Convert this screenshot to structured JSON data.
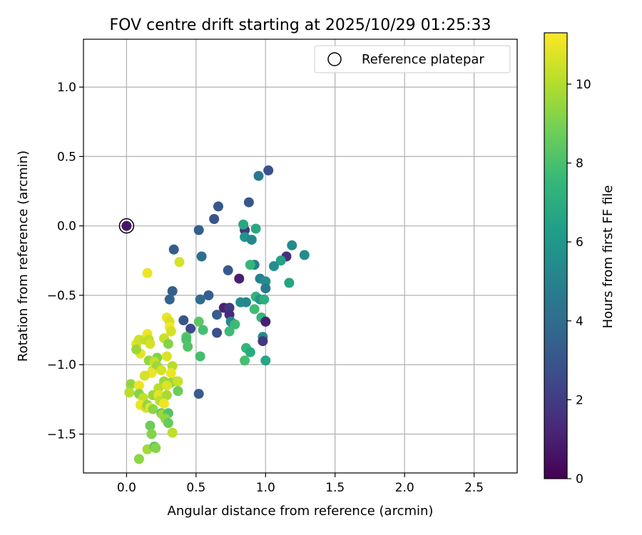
{
  "chart_data": {
    "type": "scatter",
    "title": "FOV centre drift starting at 2025/10/29 01:25:33",
    "xlabel": "Angular distance from reference (arcmin)",
    "ylabel": "Rotation from reference (arcmin)",
    "xlim": [
      -0.31,
      2.81
    ],
    "ylim": [
      -1.78,
      1.345
    ],
    "xticks": [
      0.0,
      0.5,
      1.0,
      1.5,
      2.0,
      2.5
    ],
    "xtick_labels": [
      "0.0",
      "0.5",
      "1.0",
      "1.5",
      "2.0",
      "2.5"
    ],
    "yticks": [
      -1.5,
      -1.0,
      -0.5,
      0.0,
      0.5,
      1.0
    ],
    "ytick_labels": [
      "−1.5",
      "−1.0",
      "−0.5",
      "0.0",
      "0.5",
      "1.0"
    ],
    "grid": true,
    "legend": {
      "position": "top-right",
      "label": "Reference platepar"
    },
    "reference_point": {
      "x": 0.0,
      "y": 0.0,
      "hours": 0.7
    },
    "colorbar": {
      "label": "Hours from first FF file",
      "colormap": "viridis",
      "range": [
        0,
        11.3
      ],
      "ticks": [
        0,
        2,
        4,
        6,
        8,
        10
      ],
      "tick_labels": [
        "0",
        "2",
        "4",
        "6",
        "8",
        "10"
      ]
    },
    "viridis_stops": [
      "#440154",
      "#482878",
      "#3e4a89",
      "#31688e",
      "#26828e",
      "#1f9e89",
      "#35b779",
      "#6ece58",
      "#b5de2b",
      "#fde725"
    ],
    "points": [
      [
        0.0,
        0.0,
        0.7
      ],
      [
        1.02,
        0.4,
        2.8
      ],
      [
        0.95,
        0.36,
        4.6
      ],
      [
        0.88,
        0.17,
        3.0
      ],
      [
        0.66,
        0.14,
        3.1
      ],
      [
        0.63,
        0.05,
        2.9
      ],
      [
        0.52,
        -0.03,
        3.4
      ],
      [
        0.85,
        -0.03,
        1.8
      ],
      [
        0.84,
        0.01,
        6.8
      ],
      [
        0.93,
        -0.02,
        6.8
      ],
      [
        0.85,
        -0.08,
        5.8
      ],
      [
        0.9,
        -0.1,
        5.2
      ],
      [
        0.34,
        -0.17,
        3.3
      ],
      [
        0.54,
        -0.22,
        4.1
      ],
      [
        1.19,
        -0.14,
        5.5
      ],
      [
        1.28,
        -0.21,
        5.5
      ],
      [
        1.15,
        -0.22,
        1.5
      ],
      [
        1.11,
        -0.25,
        6.5
      ],
      [
        1.06,
        -0.29,
        5.6
      ],
      [
        0.92,
        -0.28,
        4.6
      ],
      [
        0.89,
        -0.28,
        7.5
      ],
      [
        0.73,
        -0.32,
        3.2
      ],
      [
        0.81,
        -0.38,
        1.0
      ],
      [
        0.96,
        -0.38,
        5.0
      ],
      [
        1.0,
        -0.4,
        5.6
      ],
      [
        1.0,
        -0.45,
        4.6
      ],
      [
        1.17,
        -0.41,
        6.6
      ],
      [
        0.33,
        -0.47,
        3.4
      ],
      [
        0.59,
        -0.5,
        3.4
      ],
      [
        0.31,
        -0.53,
        3.6
      ],
      [
        0.53,
        -0.53,
        4.0
      ],
      [
        0.93,
        -0.51,
        7.3
      ],
      [
        0.96,
        -0.53,
        6.0
      ],
      [
        0.99,
        -0.53,
        7.1
      ],
      [
        0.82,
        -0.55,
        5.5
      ],
      [
        0.86,
        -0.55,
        5.3
      ],
      [
        0.7,
        -0.59,
        1.1
      ],
      [
        0.74,
        -0.59,
        1.9
      ],
      [
        0.74,
        -0.64,
        1.4
      ],
      [
        0.65,
        -0.64,
        3.3
      ],
      [
        0.92,
        -0.6,
        7.8
      ],
      [
        0.97,
        -0.66,
        7.4
      ],
      [
        1.0,
        -0.69,
        1.0
      ],
      [
        0.41,
        -0.68,
        3.0
      ],
      [
        0.52,
        -0.69,
        8.4
      ],
      [
        0.75,
        -0.69,
        5.3
      ],
      [
        0.78,
        -0.71,
        7.7
      ],
      [
        0.46,
        -0.74,
        2.5
      ],
      [
        0.55,
        -0.75,
        7.9
      ],
      [
        0.74,
        -0.76,
        7.7
      ],
      [
        0.65,
        -0.77,
        2.8
      ],
      [
        0.98,
        -0.8,
        5.4
      ],
      [
        0.98,
        -0.83,
        1.8
      ],
      [
        0.43,
        -0.8,
        8.3
      ],
      [
        0.43,
        -0.82,
        8.0
      ],
      [
        0.44,
        -0.87,
        8.2
      ],
      [
        0.86,
        -0.88,
        7.5
      ],
      [
        0.89,
        -0.91,
        6.9
      ],
      [
        0.53,
        -0.94,
        7.9
      ],
      [
        0.85,
        -0.97,
        7.9
      ],
      [
        1.0,
        -0.97,
        6.7
      ],
      [
        0.52,
        -1.21,
        3.3
      ],
      [
        0.38,
        -0.26,
        10.6
      ],
      [
        0.15,
        -0.34,
        11.0
      ],
      [
        0.29,
        -0.66,
        11.0
      ],
      [
        0.31,
        -0.69,
        10.6
      ],
      [
        0.31,
        -0.73,
        11.2
      ],
      [
        0.32,
        -0.76,
        10.6
      ],
      [
        0.27,
        -0.81,
        10.4
      ],
      [
        0.3,
        -0.85,
        9.2
      ],
      [
        0.07,
        -0.85,
        10.9
      ],
      [
        0.09,
        -0.82,
        10.5
      ],
      [
        0.13,
        -0.82,
        10.3
      ],
      [
        0.15,
        -0.78,
        11.0
      ],
      [
        0.16,
        -0.82,
        10.2
      ],
      [
        0.17,
        -0.85,
        10.6
      ],
      [
        0.1,
        -0.92,
        10.9
      ],
      [
        0.07,
        -0.89,
        9.6
      ],
      [
        0.16,
        -0.97,
        9.5
      ],
      [
        0.22,
        -0.95,
        9.2
      ],
      [
        0.2,
        -0.98,
        10.3
      ],
      [
        0.19,
        -1.04,
        10.4
      ],
      [
        0.22,
        -1.01,
        9.6
      ],
      [
        0.25,
        -1.04,
        10.6
      ],
      [
        0.29,
        -0.94,
        10.7
      ],
      [
        0.33,
        -1.01,
        10.1
      ],
      [
        0.32,
        -1.06,
        11.0
      ],
      [
        0.18,
        -1.06,
        11.0
      ],
      [
        0.13,
        -1.08,
        10.6
      ],
      [
        0.03,
        -1.14,
        9.4
      ],
      [
        0.09,
        -1.15,
        11.0
      ],
      [
        0.27,
        -1.12,
        9.6
      ],
      [
        0.32,
        -1.13,
        9.4
      ],
      [
        0.36,
        -1.12,
        9.9
      ],
      [
        0.37,
        -1.12,
        10.4
      ],
      [
        0.37,
        -1.19,
        8.7
      ],
      [
        0.23,
        -1.17,
        10.1
      ],
      [
        0.29,
        -1.15,
        10.7
      ],
      [
        0.02,
        -1.2,
        10.1
      ],
      [
        0.09,
        -1.21,
        9.2
      ],
      [
        0.12,
        -1.24,
        10.3
      ],
      [
        0.19,
        -1.22,
        9.6
      ],
      [
        0.23,
        -1.22,
        10.9
      ],
      [
        0.24,
        -1.26,
        10.2
      ],
      [
        0.29,
        -1.22,
        9.8
      ],
      [
        0.27,
        -1.28,
        11.0
      ],
      [
        0.1,
        -1.29,
        11.0
      ],
      [
        0.14,
        -1.31,
        10.5
      ],
      [
        0.15,
        -1.29,
        9.4
      ],
      [
        0.17,
        -1.31,
        10.9
      ],
      [
        0.19,
        -1.32,
        9.3
      ],
      [
        0.25,
        -1.35,
        8.6
      ],
      [
        0.26,
        -1.36,
        9.6
      ],
      [
        0.3,
        -1.35,
        8.2
      ],
      [
        0.28,
        -1.39,
        9.4
      ],
      [
        0.3,
        -1.42,
        8.6
      ],
      [
        0.17,
        -1.44,
        8.7
      ],
      [
        0.18,
        -1.5,
        9.2
      ],
      [
        0.33,
        -1.49,
        10.2
      ],
      [
        0.15,
        -1.61,
        9.7
      ],
      [
        0.2,
        -1.59,
        8.4
      ],
      [
        0.21,
        -1.6,
        9.2
      ],
      [
        0.09,
        -1.68,
        9.3
      ]
    ]
  }
}
